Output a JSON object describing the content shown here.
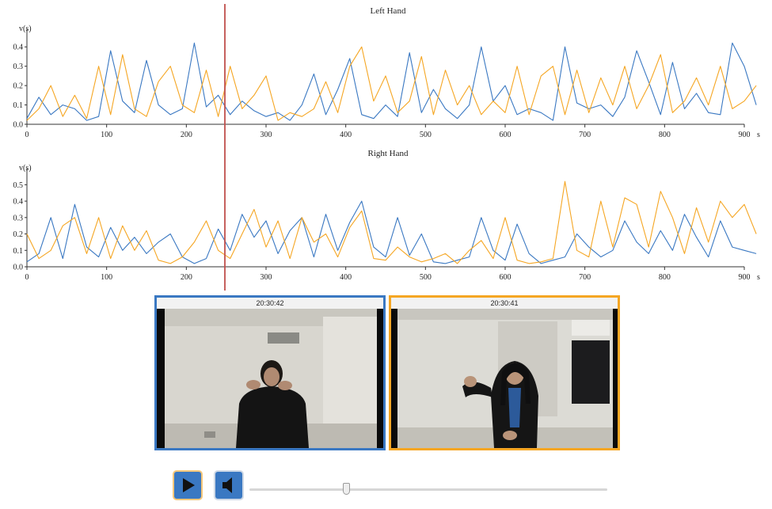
{
  "colors": {
    "series_a": "#3a78c2",
    "series_b": "#f5a623",
    "playhead": "#c0504d"
  },
  "chart_data": [
    {
      "type": "line",
      "title": "Left Hand",
      "ylabel": "v(s)",
      "xlabel_unit": "s",
      "xlim": [
        0,
        900
      ],
      "ylim": [
        0,
        0.45
      ],
      "x_ticks": [
        0,
        100,
        200,
        300,
        400,
        500,
        600,
        700,
        800,
        900
      ],
      "y_ticks": [
        0.0,
        0.1,
        0.2,
        0.3,
        0.4
      ],
      "x_step": 15,
      "series": [
        {
          "color": "#3a78c2",
          "values": [
            0.03,
            0.14,
            0.05,
            0.1,
            0.08,
            0.02,
            0.04,
            0.38,
            0.12,
            0.06,
            0.33,
            0.1,
            0.05,
            0.08,
            0.42,
            0.09,
            0.15,
            0.05,
            0.12,
            0.07,
            0.04,
            0.06,
            0.02,
            0.1,
            0.26,
            0.05,
            0.18,
            0.34,
            0.05,
            0.03,
            0.1,
            0.04,
            0.37,
            0.06,
            0.18,
            0.08,
            0.03,
            0.1,
            0.4,
            0.12,
            0.2,
            0.05,
            0.08,
            0.06,
            0.02,
            0.4,
            0.11,
            0.08,
            0.1,
            0.04,
            0.14,
            0.38,
            0.22,
            0.05,
            0.32,
            0.08,
            0.16,
            0.06,
            0.05,
            0.42,
            0.3,
            0.1
          ]
        },
        {
          "color": "#f5a623",
          "values": [
            0.02,
            0.08,
            0.2,
            0.04,
            0.15,
            0.03,
            0.3,
            0.05,
            0.36,
            0.08,
            0.04,
            0.22,
            0.3,
            0.1,
            0.06,
            0.28,
            0.04,
            0.3,
            0.08,
            0.15,
            0.25,
            0.02,
            0.06,
            0.04,
            0.08,
            0.22,
            0.06,
            0.3,
            0.4,
            0.12,
            0.25,
            0.06,
            0.12,
            0.35,
            0.05,
            0.28,
            0.1,
            0.2,
            0.05,
            0.12,
            0.06,
            0.3,
            0.05,
            0.25,
            0.3,
            0.05,
            0.28,
            0.06,
            0.24,
            0.1,
            0.3,
            0.08,
            0.2,
            0.36,
            0.06,
            0.12,
            0.24,
            0.1,
            0.3,
            0.08,
            0.12,
            0.2
          ]
        }
      ]
    },
    {
      "type": "line",
      "title": "Right Hand",
      "ylabel": "v(s)",
      "xlabel_unit": "s",
      "xlim": [
        0,
        900
      ],
      "ylim": [
        0,
        0.55
      ],
      "x_ticks": [
        0,
        100,
        200,
        300,
        400,
        500,
        600,
        700,
        800,
        900
      ],
      "y_ticks": [
        0.0,
        0.1,
        0.2,
        0.3,
        0.4,
        0.5
      ],
      "x_step": 15,
      "series": [
        {
          "color": "#3a78c2",
          "values": [
            0.03,
            0.08,
            0.3,
            0.05,
            0.38,
            0.12,
            0.06,
            0.24,
            0.1,
            0.18,
            0.08,
            0.15,
            0.2,
            0.06,
            0.02,
            0.05,
            0.23,
            0.1,
            0.32,
            0.18,
            0.28,
            0.08,
            0.22,
            0.3,
            0.06,
            0.32,
            0.1,
            0.27,
            0.4,
            0.12,
            0.06,
            0.3,
            0.07,
            0.2,
            0.03,
            0.02,
            0.04,
            0.06,
            0.3,
            0.1,
            0.04,
            0.26,
            0.08,
            0.02,
            0.04,
            0.06,
            0.2,
            0.12,
            0.06,
            0.1,
            0.28,
            0.15,
            0.08,
            0.22,
            0.1,
            0.32,
            0.18,
            0.06,
            0.28,
            0.12,
            0.1,
            0.08
          ]
        },
        {
          "color": "#f5a623",
          "values": [
            0.2,
            0.05,
            0.1,
            0.25,
            0.3,
            0.08,
            0.3,
            0.05,
            0.25,
            0.1,
            0.22,
            0.04,
            0.02,
            0.06,
            0.15,
            0.28,
            0.1,
            0.05,
            0.2,
            0.35,
            0.12,
            0.28,
            0.05,
            0.3,
            0.15,
            0.2,
            0.06,
            0.24,
            0.34,
            0.05,
            0.04,
            0.12,
            0.06,
            0.03,
            0.05,
            0.08,
            0.02,
            0.1,
            0.16,
            0.05,
            0.3,
            0.04,
            0.02,
            0.03,
            0.05,
            0.52,
            0.1,
            0.06,
            0.4,
            0.12,
            0.42,
            0.38,
            0.12,
            0.46,
            0.3,
            0.08,
            0.36,
            0.15,
            0.4,
            0.3,
            0.38,
            0.2
          ]
        }
      ]
    }
  ],
  "videos": [
    {
      "timestamp": "20:30:42",
      "border_color": "#3a78c2"
    },
    {
      "timestamp": "20:30:41",
      "border_color": "#f5a623"
    }
  ],
  "playhead_time": 248,
  "controls": {
    "play_icon": "play-icon",
    "volume_icon": "speaker-icon",
    "seek_position": 0.27
  }
}
